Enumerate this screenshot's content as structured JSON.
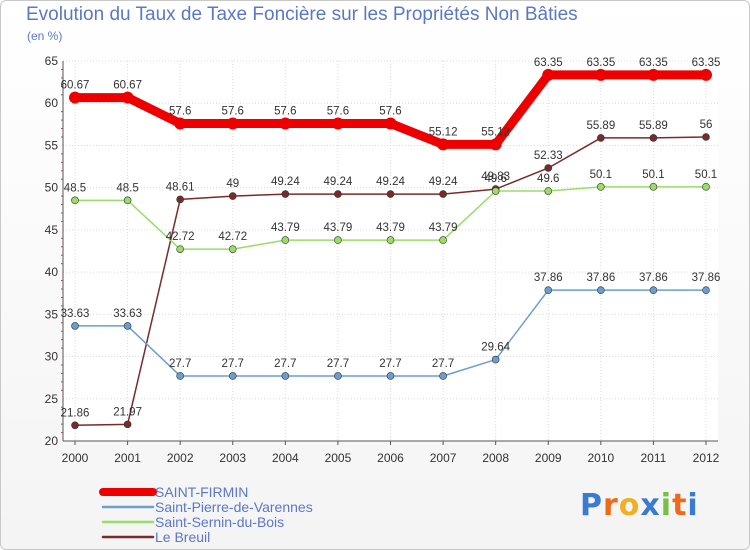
{
  "chart_data": {
    "type": "line",
    "title": "Evolution du Taux de Taxe Foncière sur les Propriétés Non Bâties",
    "unit": "(en %)",
    "x": [
      "2000",
      "2001",
      "2002",
      "2003",
      "2004",
      "2005",
      "2006",
      "2007",
      "2008",
      "2009",
      "2010",
      "2011",
      "2012"
    ],
    "ylim": [
      20,
      65
    ],
    "yticks": [
      20,
      25,
      30,
      35,
      40,
      45,
      50,
      55,
      60,
      65
    ],
    "grid": true,
    "legend_position": "bottom-left",
    "series": [
      {
        "name": "SAINT-FIRMIN",
        "color": "#ee0000",
        "values": [
          60.67,
          60.67,
          57.6,
          57.6,
          57.6,
          57.6,
          57.6,
          55.12,
          55.12,
          63.35,
          63.35,
          63.35,
          63.35
        ],
        "labels": [
          "60.67",
          "60.67",
          "57.6",
          "57.6",
          "57.6",
          "57.6",
          "57.6",
          "55.12",
          "55.12",
          "63.35",
          "63.35",
          "63.35",
          "63.35"
        ]
      },
      {
        "name": "Saint-Pierre-de-Varennes",
        "color": "#6a9ed0",
        "values": [
          33.63,
          33.63,
          27.7,
          27.7,
          27.7,
          27.7,
          27.7,
          27.7,
          29.64,
          37.86,
          37.86,
          37.86,
          37.86
        ],
        "labels": [
          "33.63",
          "33.63",
          "27.7",
          "27.7",
          "27.7",
          "27.7",
          "27.7",
          "27.7",
          "29.64",
          "37.86",
          "37.86",
          "37.86",
          "37.86"
        ]
      },
      {
        "name": "Saint-Sernin-du-Bois",
        "color": "#99dd66",
        "values": [
          48.5,
          48.5,
          42.72,
          42.72,
          43.79,
          43.79,
          43.79,
          43.79,
          49.6,
          49.6,
          50.1,
          50.1,
          50.1
        ],
        "labels": [
          "48.5",
          "48.5",
          "42.72",
          "42.72",
          "43.79",
          "43.79",
          "43.79",
          "43.79",
          "49.6",
          "49.6",
          "50.1",
          "50.1",
          "50.1"
        ]
      },
      {
        "name": "Le Breuil",
        "color": "#7a2a2a",
        "values": [
          21.86,
          21.97,
          48.61,
          49,
          49.24,
          49.24,
          49.24,
          49.24,
          49.83,
          52.33,
          55.89,
          55.89,
          56
        ],
        "labels": [
          "21.86",
          "21.97",
          "48.61",
          "49",
          "49.24",
          "49.24",
          "49.24",
          "49.24",
          "49.83",
          "52.33",
          "55.89",
          "55.89",
          "56"
        ]
      }
    ]
  },
  "logo": {
    "text": "Proxiti",
    "letters": [
      {
        "ch": "P",
        "color": "#3a7ad0"
      },
      {
        "ch": "r",
        "color": "#ee6a1a"
      },
      {
        "ch": "o",
        "color": "#f0b020"
      },
      {
        "ch": "x",
        "color": "#3a7ad0"
      },
      {
        "ch": "i",
        "color": "#7ac040"
      },
      {
        "ch": "t",
        "color": "#ee6a1a"
      },
      {
        "ch": "i",
        "color": "#3a7ad0"
      }
    ]
  }
}
